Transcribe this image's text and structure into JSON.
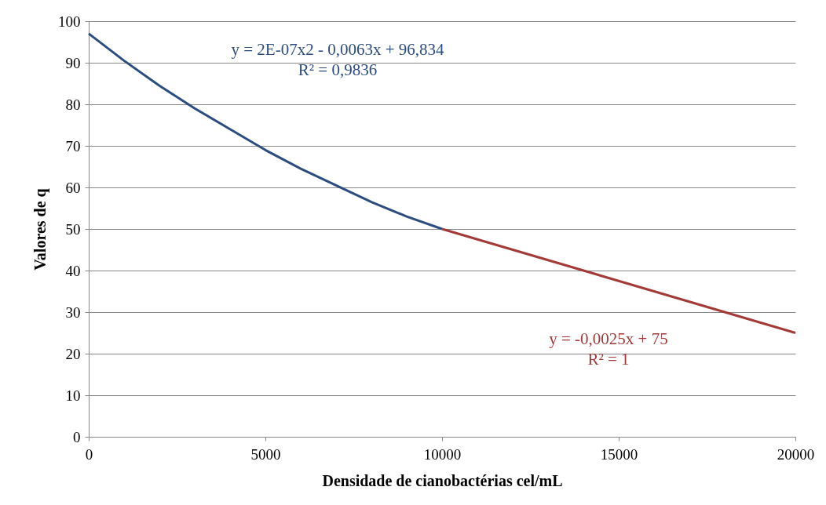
{
  "chart_data": {
    "type": "line",
    "xlabel": "Densidade de cianobactérias cel/mL",
    "ylabel": "Valores de q",
    "series": [
      {
        "color": "#2b4c7e",
        "x": [
          0,
          1000,
          2000,
          3000,
          4000,
          5000,
          6000,
          7000,
          8000,
          9000,
          10000
        ],
        "values": [
          97,
          90.5,
          84.5,
          79,
          74,
          69,
          64.5,
          60.5,
          56.5,
          53,
          50
        ]
      },
      {
        "color": "#a33a38",
        "x": [
          10000,
          20000
        ],
        "values": [
          50,
          25
        ]
      }
    ],
    "annotations": [
      "y = 2E-07x2  - 0,0063x + 96,834\nR² = 0,9836",
      "y = -0,0025x + 75\nR² = 1"
    ],
    "xlim": [
      0,
      20000
    ],
    "xticks": [
      0,
      5000,
      10000,
      15000,
      20000
    ],
    "ylim": [
      0,
      100
    ],
    "yticks": [
      0,
      10,
      20,
      30,
      40,
      50,
      60,
      70,
      80,
      90,
      100
    ],
    "grid": "y",
    "marker": "none",
    "line_style": "solid",
    "legend": false
  }
}
